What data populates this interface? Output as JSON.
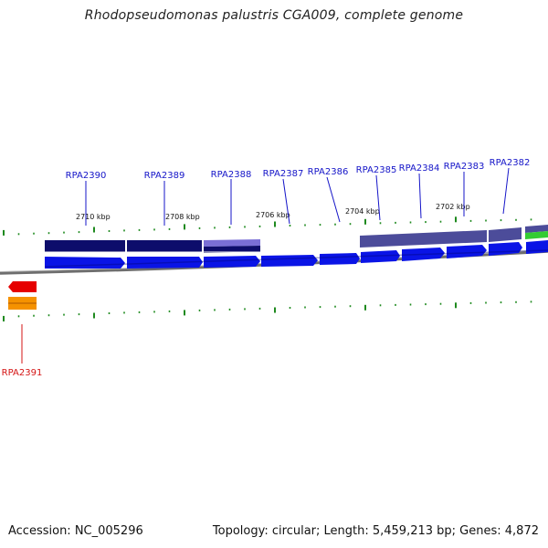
{
  "title": "Rhodopseudomonas palustris CGA009, complete genome",
  "footer": {
    "accession": "Accession: NC_005296",
    "summary": "Topology: circular; Length: 5,459,213 bp; Genes: 4,872"
  },
  "colors": {
    "forward_cds": "#0a14e6",
    "reverse_cds": "#e60000",
    "reverse_feature": "#f59200",
    "gene_label_forward": "#1414c8",
    "gene_label_reverse": "#d41414",
    "tick": "#1f8a1f",
    "backbone": "#808080",
    "blast_hit_dark": "#0d0d6b",
    "blast_hit_mid": "#4c4c9a",
    "blast_hit_light": "#7a6fd6",
    "green_bar": "#33cc33"
  },
  "scale_labels": [
    "2710 kbp",
    "2708 kbp",
    "2706 kbp",
    "2704 kbp",
    "2702 kbp"
  ],
  "genes_forward": [
    "RPA2390",
    "RPA2389",
    "RPA2388",
    "RPA2387",
    "RPA2386",
    "RPA2385",
    "RPA2384",
    "RPA2383",
    "RPA2382"
  ],
  "genes_reverse": [
    "RPA2391"
  ]
}
